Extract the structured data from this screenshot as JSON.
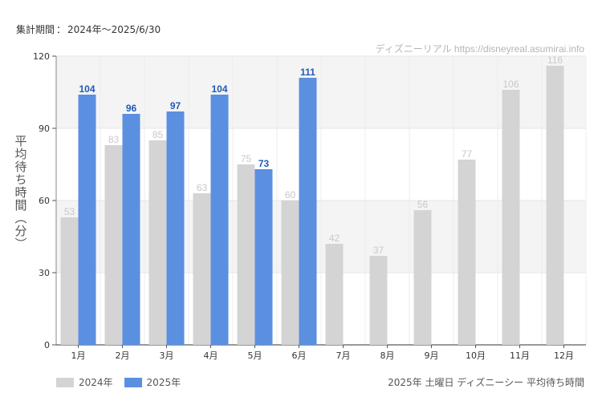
{
  "header": {
    "period_label": "集計期間",
    "period_sep": "：",
    "period_value": "2024年～2025/6/30",
    "credit": "ディズニーリアル https://disneyreal.asumirai.info"
  },
  "footer": {
    "caption": "2025年 土曜日 ディズニーシー 平均待ち時間"
  },
  "colors": {
    "series_2024": "#d4d4d4",
    "series_2025": "#5b8fe0",
    "label_2024": "#c8c8c8",
    "label_2025": "#1f5bb8",
    "band": "#f4f4f4"
  },
  "chart_data": {
    "type": "bar",
    "ylabel": "平均待ち時間（分）",
    "ylim": [
      0,
      120
    ],
    "yticks": [
      0,
      30,
      60,
      90,
      120
    ],
    "categories": [
      "1月",
      "2月",
      "3月",
      "4月",
      "5月",
      "6月",
      "7月",
      "8月",
      "9月",
      "10月",
      "11月",
      "12月"
    ],
    "series": [
      {
        "name": "2024年",
        "values": [
          53,
          83,
          85,
          63,
          75,
          60,
          42,
          37,
          56,
          77,
          106,
          116
        ]
      },
      {
        "name": "2025年",
        "values": [
          104,
          96,
          97,
          104,
          73,
          111,
          null,
          null,
          null,
          null,
          null,
          null
        ]
      }
    ],
    "grid": true,
    "legend": "bottom-left"
  }
}
